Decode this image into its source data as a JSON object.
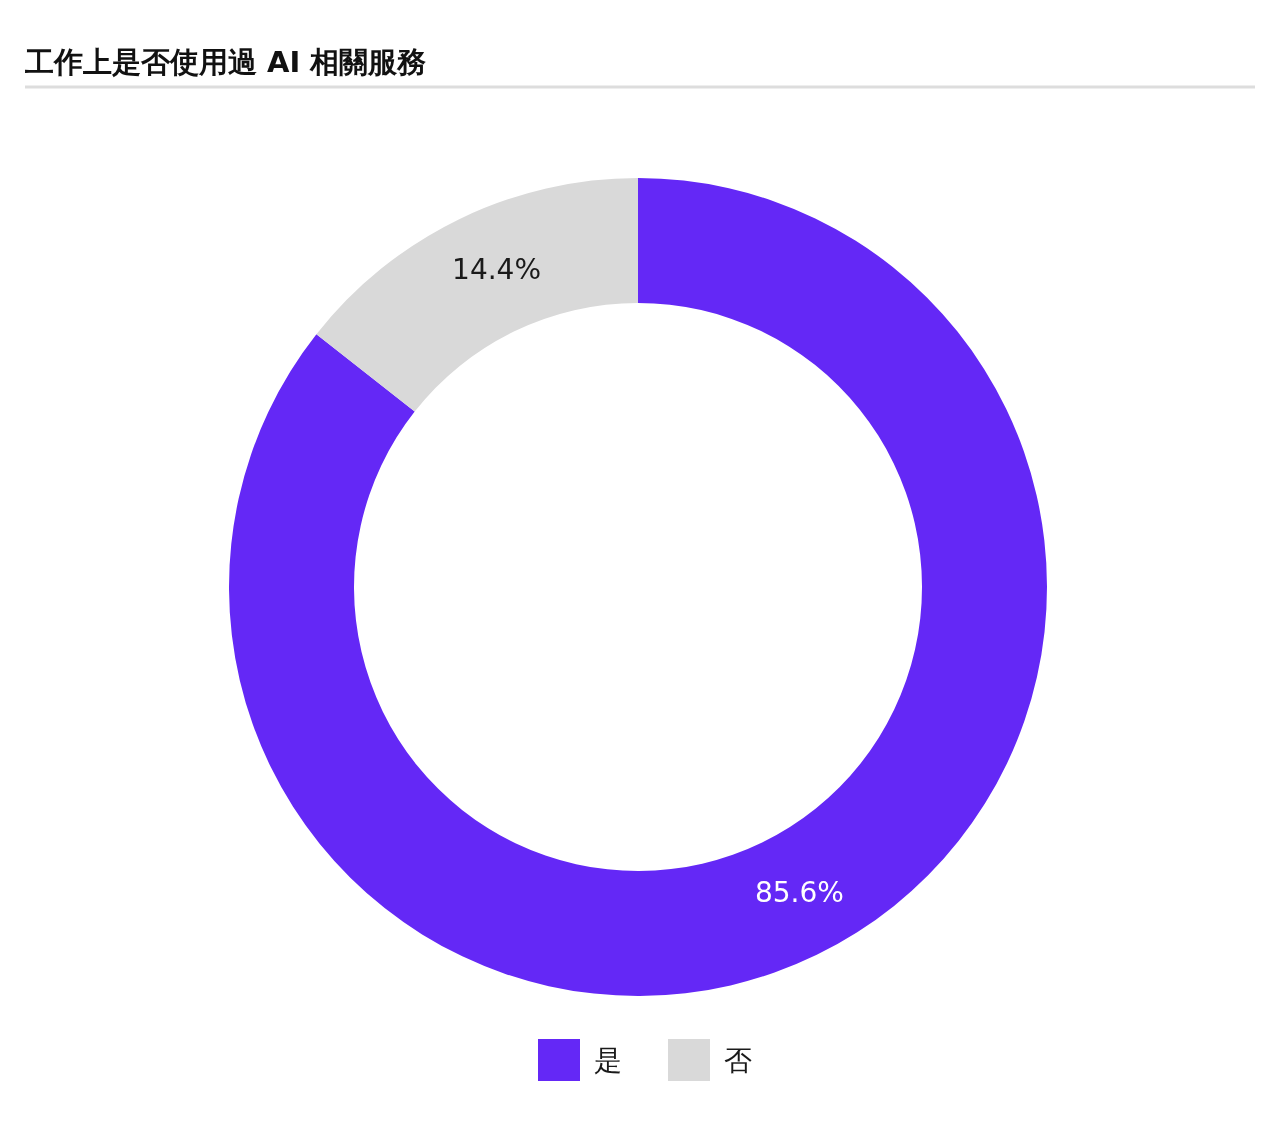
{
  "chart_data": {
    "type": "donut",
    "title": "工作上是否使用過 AI 相關服務",
    "categories": [
      "是",
      "否"
    ],
    "values": [
      85.6,
      14.4
    ],
    "colors": [
      "#6428f6",
      "#d9d9d9"
    ],
    "value_labels": [
      "85.6%",
      "14.4%"
    ],
    "legend": "bottom"
  }
}
